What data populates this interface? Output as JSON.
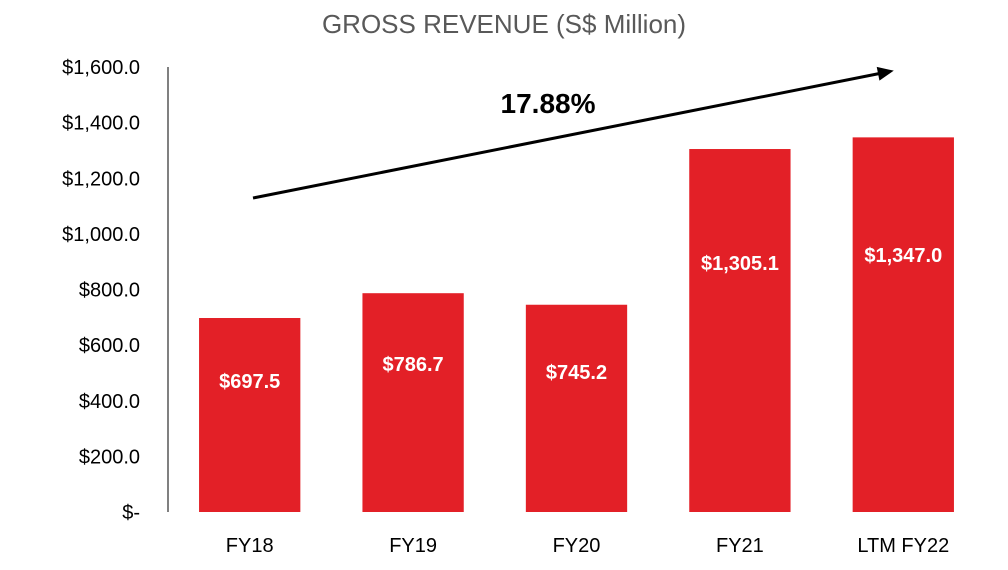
{
  "chart_data": {
    "type": "bar",
    "title": "GROSS REVENUE (S$ Million)",
    "categories": [
      "FY18",
      "FY19",
      "FY20",
      "FY21",
      "LTM FY22"
    ],
    "values": [
      697.5,
      786.7,
      745.2,
      1305.1,
      1347.0
    ],
    "data_labels": [
      "$697.5",
      "$786.7",
      "$745.2",
      "$1,305.1",
      "$1,347.0"
    ],
    "ylim": [
      0,
      1600
    ],
    "yticks": [
      0,
      200,
      400,
      600,
      800,
      1000,
      1200,
      1400,
      1600
    ],
    "ytick_labels": [
      "$-",
      "$200.0",
      "$400.0",
      "$600.0",
      "$800.0",
      "$1,000.0",
      "$1,200.0",
      "$1,400.0",
      "$1,600.0"
    ],
    "xlabel": "",
    "ylabel": "",
    "grid": false,
    "legend": "none",
    "annotation": {
      "text": "17.88%",
      "type": "growth-arrow"
    },
    "colors": {
      "bar": "#E32027",
      "title": "#595959",
      "axis": "#000000",
      "arrow": "#000000"
    }
  }
}
